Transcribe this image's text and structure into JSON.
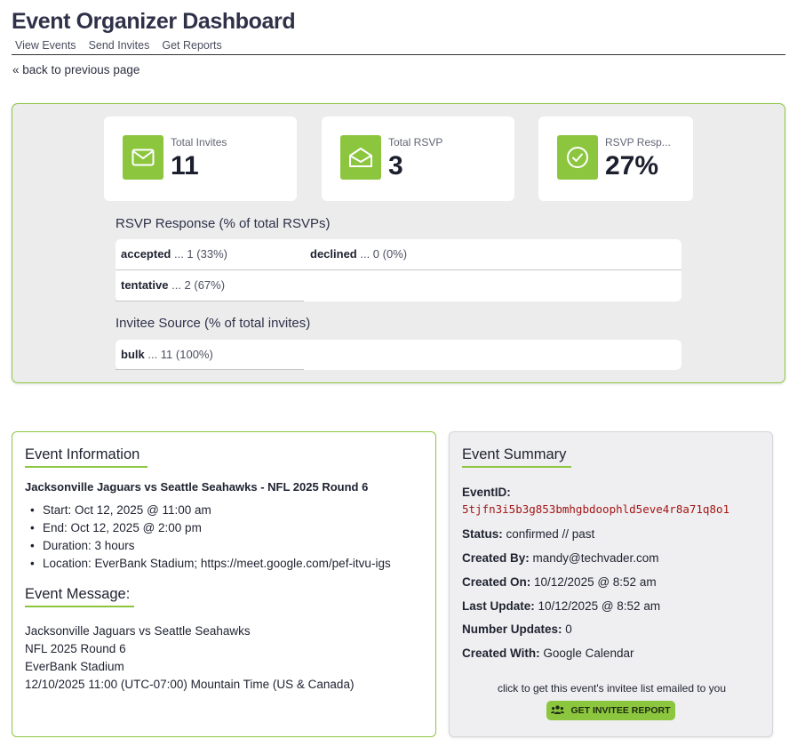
{
  "app": {
    "title": "Event Organizer Dashboard",
    "nav": [
      "View Events",
      "Send Invites",
      "Get Reports"
    ],
    "back_link": "« back to previous page"
  },
  "stats": [
    {
      "label": "Total Invites",
      "value": "11",
      "icon": "envelope-icon"
    },
    {
      "label": "Total RSVP",
      "value": "3",
      "icon": "envelope-open-icon"
    },
    {
      "label": "RSVP Resp...",
      "value": "27%",
      "icon": "check-circle-icon"
    }
  ],
  "rsvp_breakdown": {
    "title": "RSVP Response (% of total RSVPs)",
    "items": [
      {
        "label": "accepted",
        "value": " ... 1 (33%)"
      },
      {
        "label": "declined",
        "value": " ... 0 (0%)"
      },
      {
        "label": "tentative",
        "value": " ... 2 (67%)"
      }
    ]
  },
  "source_breakdown": {
    "title": "Invitee Source (% of total invites)",
    "items": [
      {
        "label": "bulk",
        "value": " ... 11 (100%)"
      }
    ]
  },
  "event_info": {
    "heading": "Event Information",
    "event_title": "Jacksonville Jaguars vs Seattle Seahawks - NFL 2025 Round 6",
    "details": [
      "Start: Oct 12, 2025 @ 11:00 am",
      "End: Oct 12, 2025 @ 2:00 pm",
      "Duration: 3 hours",
      "Location: EverBank Stadium; https://meet.google.com/pef-itvu-igs"
    ],
    "message_heading": "Event Message:",
    "message_lines": [
      "Jacksonville Jaguars vs Seattle Seahawks",
      "NFL 2025 Round 6",
      "EverBank Stadium",
      "12/10/2025 11:00 (UTC-07:00) Mountain Time (US & Canada)"
    ]
  },
  "summary": {
    "heading": "Event Summary",
    "event_id_label": "EventID:",
    "event_id": "5tjfn3i5b3g853bmhgbdoophld5eve4r8a71q8o1",
    "rows": [
      {
        "label": "Status:",
        "value": " confirmed // past"
      },
      {
        "label": "Created By:",
        "value": " mandy@techvader.com"
      },
      {
        "label": "Created On:",
        "value": " 10/12/2025 @ 8:52 am"
      },
      {
        "label": "Last Update:",
        "value": " 10/12/2025 @ 8:52 am"
      },
      {
        "label": "Number Updates:",
        "value": " 0"
      },
      {
        "label": "Created With:",
        "value": " Google Calendar"
      }
    ],
    "cta_text": "click to get this event's invitee list emailed to you",
    "cta_button": "GET INVITEE REPORT",
    "cta_icon": "users-icon"
  },
  "colors": {
    "accent": "#8cc63f",
    "event_id": "#a31515",
    "panel_bg": "#ececed"
  }
}
